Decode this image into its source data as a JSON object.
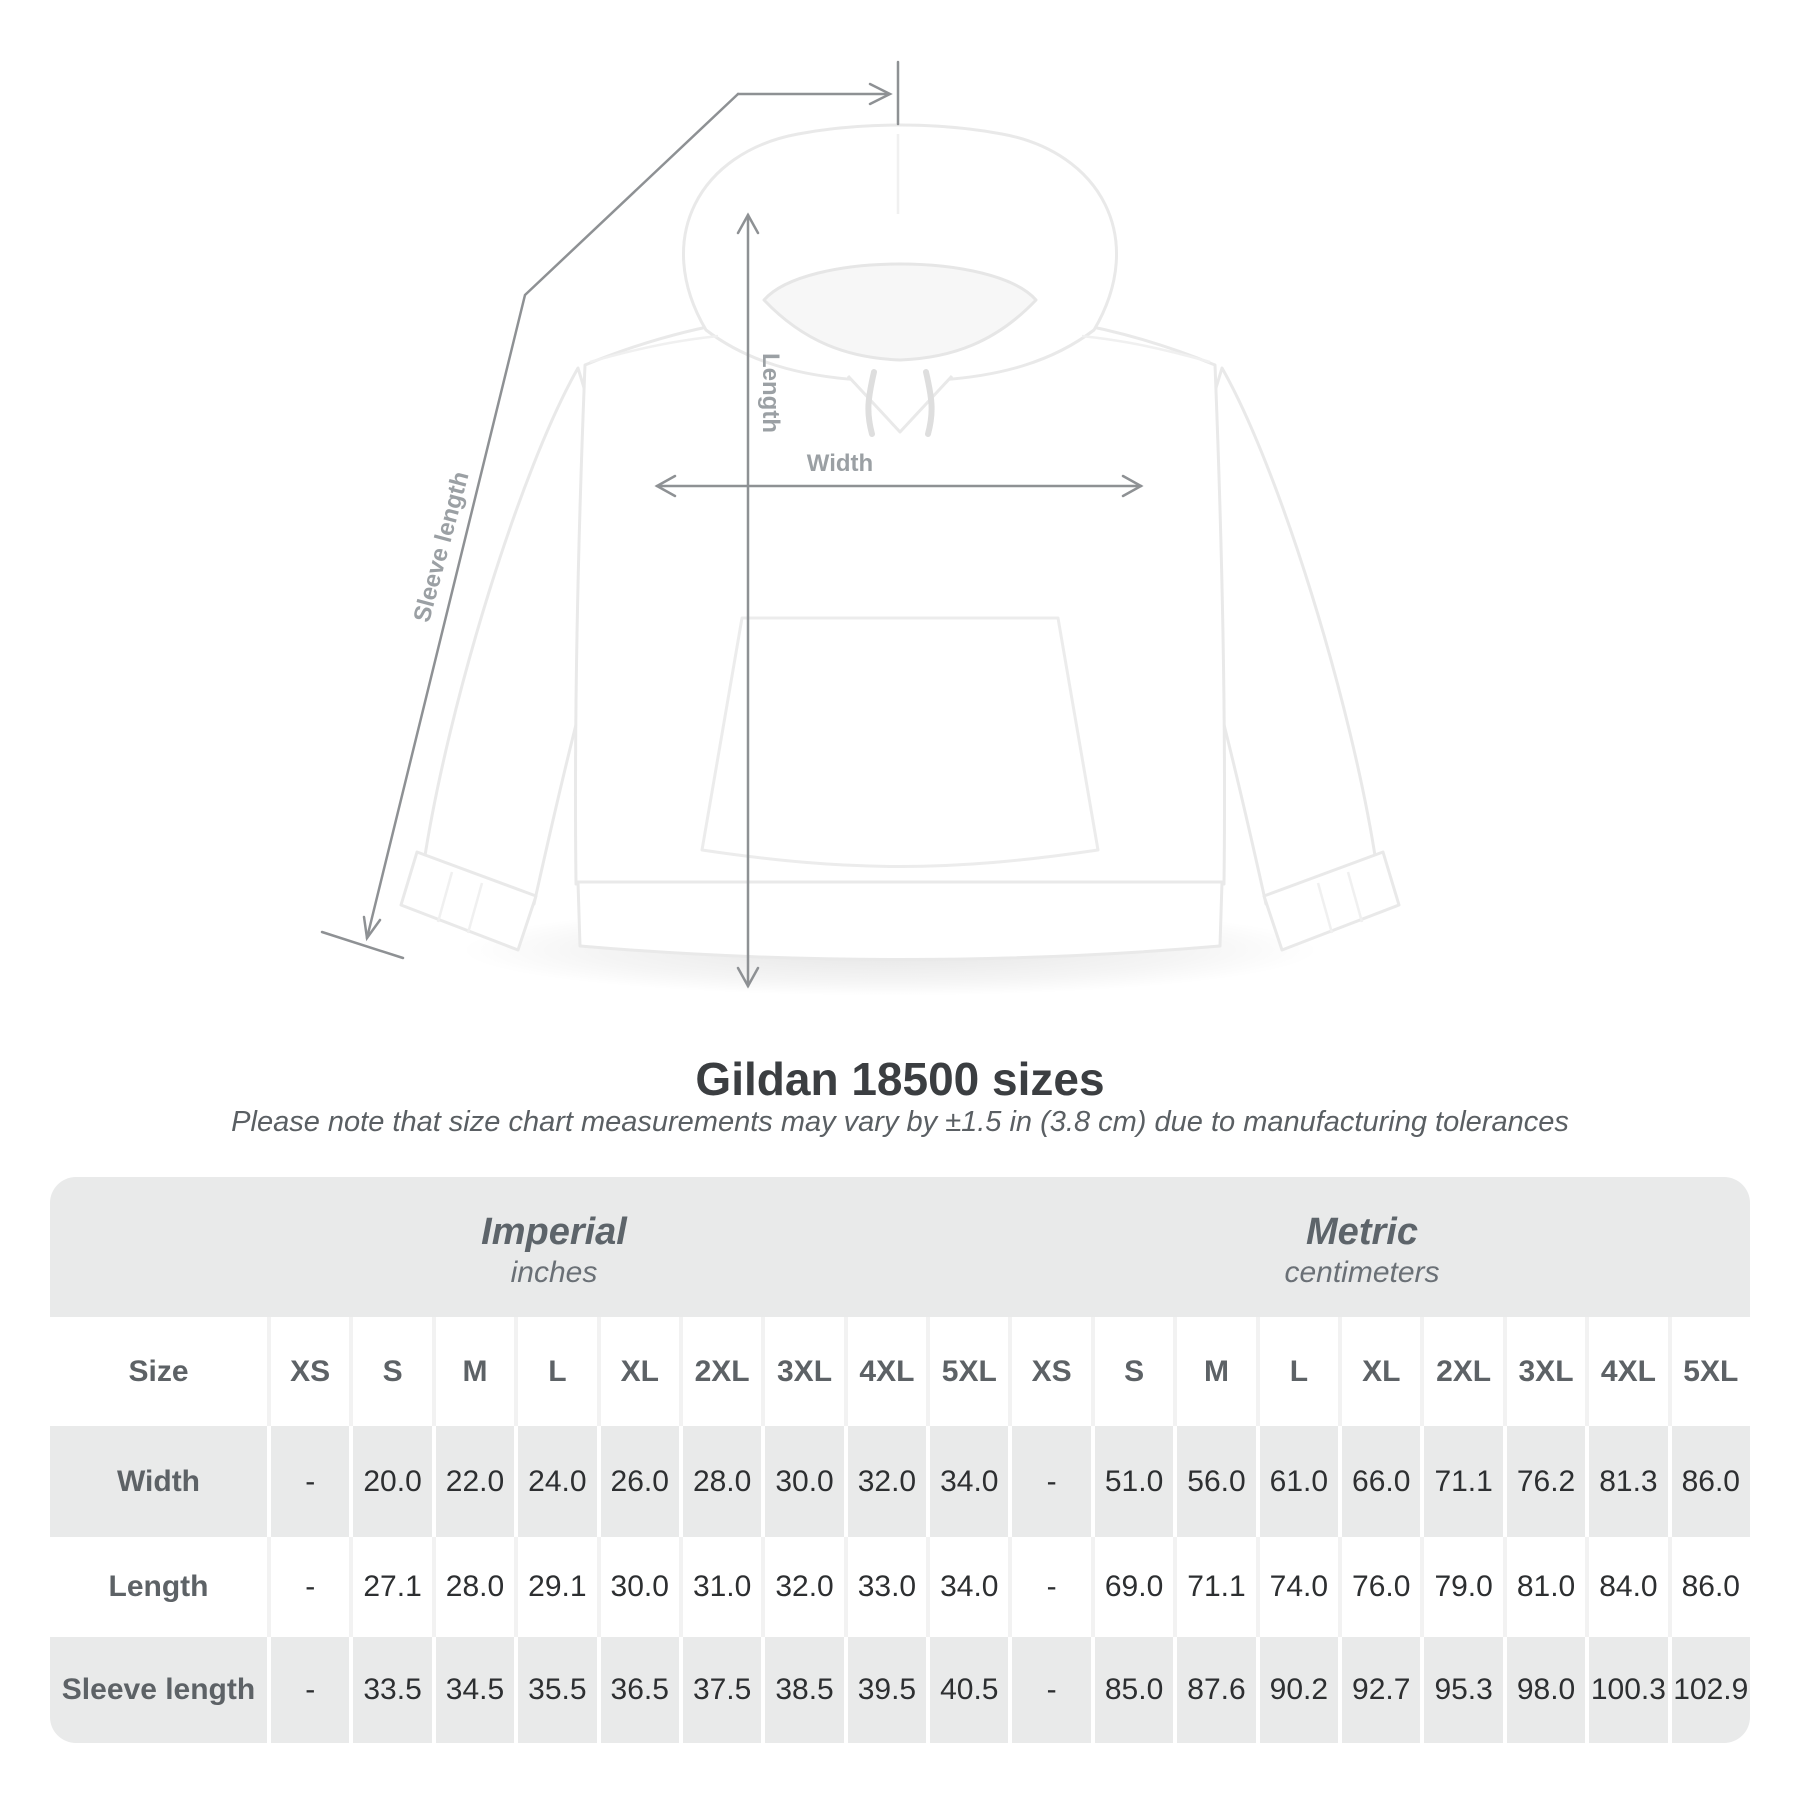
{
  "diagram": {
    "sleeve_label": "Sleeve length",
    "length_label": "Length",
    "width_label": "Width"
  },
  "title": "Gildan 18500 sizes",
  "subtitle": "Please note that size chart measurements may vary by ±1.5 in (3.8 cm) due to manufacturing tolerances",
  "colors": {
    "table_gray": "#e9eaea",
    "measure_line": "#8e9194",
    "diagram_label_gray": "#9ba0a4"
  },
  "chart_data": {
    "type": "table",
    "title": "Gildan 18500 sizes",
    "note": "Please note that size chart measurements may vary by ±1.5 in (3.8 cm) due to manufacturing tolerances",
    "size_header_label": "Size",
    "column_groups": [
      {
        "label": "Imperial",
        "unit": "inches",
        "columns": [
          "XS",
          "S",
          "M",
          "L",
          "XL",
          "2XL",
          "3XL",
          "4XL",
          "5XL"
        ]
      },
      {
        "label": "Metric",
        "unit": "centimeters",
        "columns": [
          "XS",
          "S",
          "M",
          "L",
          "XL",
          "2XL",
          "3XL",
          "4XL",
          "5XL"
        ]
      }
    ],
    "rows": [
      {
        "label": "Width",
        "values": [
          "-",
          "20.0",
          "22.0",
          "24.0",
          "26.0",
          "28.0",
          "30.0",
          "32.0",
          "34.0",
          "-",
          "51.0",
          "56.0",
          "61.0",
          "66.0",
          "71.1",
          "76.2",
          "81.3",
          "86.0"
        ]
      },
      {
        "label": "Length",
        "values": [
          "-",
          "27.1",
          "28.0",
          "29.1",
          "30.0",
          "31.0",
          "32.0",
          "33.0",
          "34.0",
          "-",
          "69.0",
          "71.1",
          "74.0",
          "76.0",
          "79.0",
          "81.0",
          "84.0",
          "86.0"
        ]
      },
      {
        "label": "Sleeve length",
        "values": [
          "-",
          "33.5",
          "34.5",
          "35.5",
          "36.5",
          "37.5",
          "38.5",
          "39.5",
          "40.5",
          "-",
          "85.0",
          "87.6",
          "90.2",
          "92.7",
          "95.3",
          "98.0",
          "100.3",
          "102.9"
        ]
      }
    ]
  }
}
